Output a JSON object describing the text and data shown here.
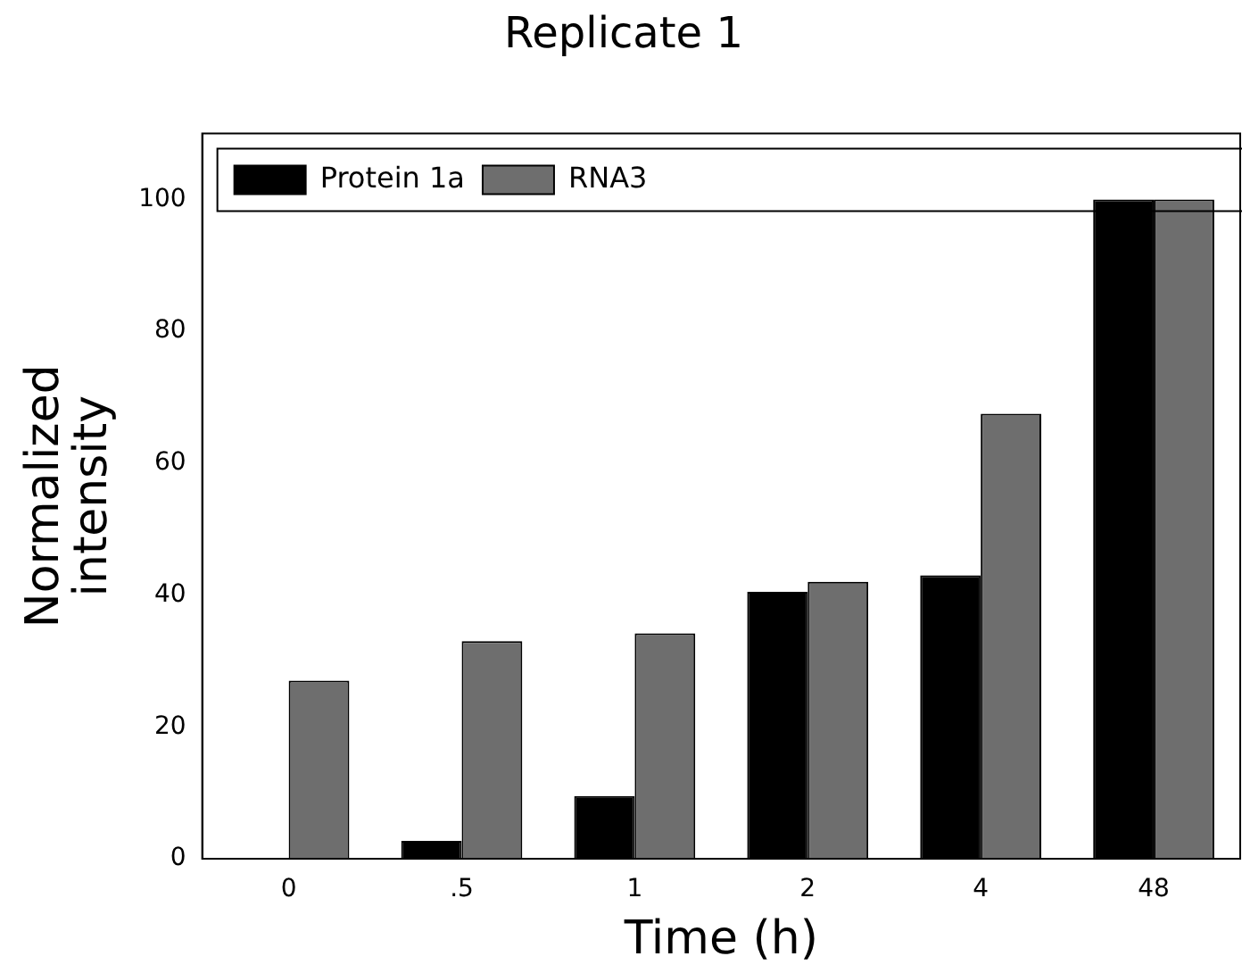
{
  "chart_data": {
    "type": "bar",
    "title": "Replicate 1",
    "xlabel": "Time (h)",
    "ylabel": "Normalized\nintensity",
    "categories": [
      "0",
      ".5",
      "1",
      "2",
      "4",
      "48"
    ],
    "series": [
      {
        "name": "Protein 1a",
        "color": "#000000",
        "values": [
          0,
          2.7,
          9.5,
          40.5,
          43,
          100
        ]
      },
      {
        "name": "RNA3",
        "color": "#6e6e6e",
        "values": [
          27,
          33,
          34.2,
          42,
          67.5,
          100
        ]
      }
    ],
    "ylim": [
      0,
      110
    ],
    "yticks": [
      0,
      20,
      40,
      60,
      80,
      100
    ],
    "grid": false,
    "legend": "top left"
  }
}
